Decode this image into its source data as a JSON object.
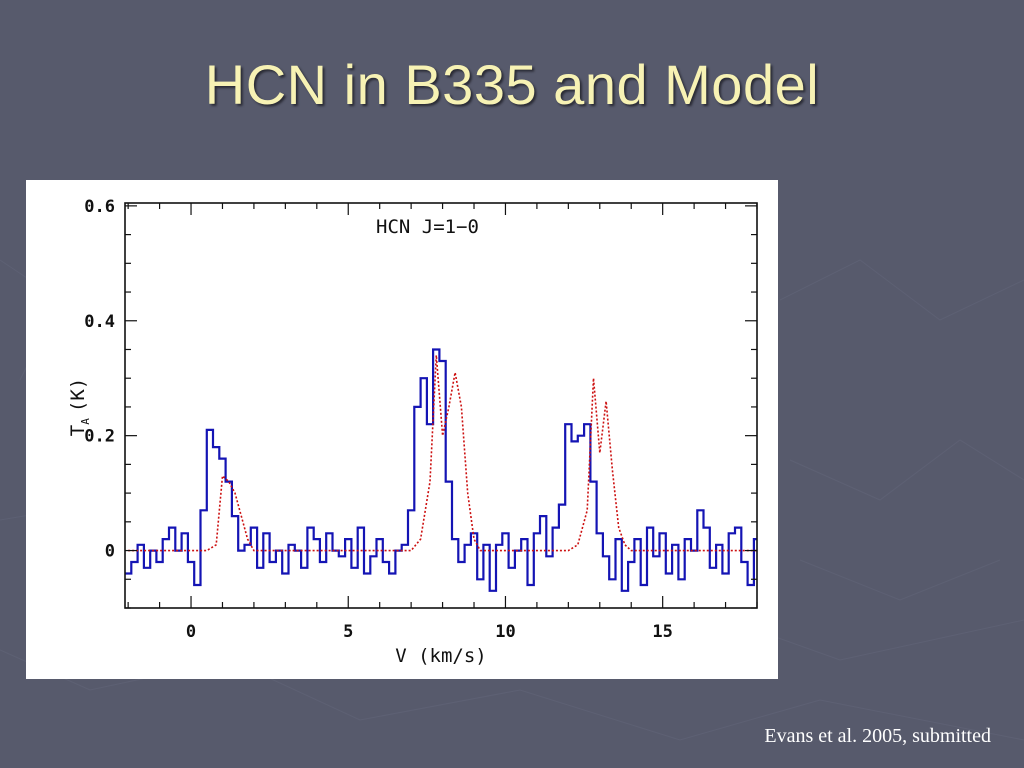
{
  "slide": {
    "title": "HCN in B335 and Model",
    "citation": "Evans et al. 2005, submitted"
  },
  "colors": {
    "background": "#575a6c",
    "title": "#f7f2b4",
    "observed": "#1414b4",
    "model": "#cc1010"
  },
  "chart_data": {
    "type": "line",
    "annotation": "HCN J=1−0",
    "xlabel": "V (km/s)",
    "ylabel_main": "T",
    "ylabel_sub": "A",
    "ylabel_suffix": "(K)",
    "xlim": [
      -2.1,
      18.0
    ],
    "ylim": [
      -0.1,
      0.605
    ],
    "x_ticks": [
      {
        "value": 0,
        "label": "0"
      },
      {
        "value": 5,
        "label": "5"
      },
      {
        "value": 10,
        "label": "10"
      },
      {
        "value": 15,
        "label": "15"
      }
    ],
    "y_ticks": [
      {
        "value": 0,
        "label": "0"
      },
      {
        "value": 0.2,
        "label": "0.2"
      },
      {
        "value": 0.4,
        "label": "0.4"
      },
      {
        "value": 0.6,
        "label": "0.6"
      }
    ],
    "grid": false,
    "series": [
      {
        "style": "solid-step",
        "x": [
          -2.0,
          -1.8,
          -1.6,
          -1.4,
          -1.2,
          -1.0,
          -0.8,
          -0.6,
          -0.4,
          -0.2,
          0.0,
          0.2,
          0.4,
          0.6,
          0.8,
          1.0,
          1.2,
          1.4,
          1.6,
          1.8,
          2.0,
          2.2,
          2.4,
          2.6,
          2.8,
          3.0,
          3.2,
          3.4,
          3.6,
          3.8,
          4.0,
          4.2,
          4.4,
          4.6,
          4.8,
          5.0,
          5.2,
          5.4,
          5.6,
          5.8,
          6.0,
          6.2,
          6.4,
          6.6,
          6.8,
          7.0,
          7.2,
          7.4,
          7.6,
          7.8,
          8.0,
          8.2,
          8.4,
          8.6,
          8.8,
          9.0,
          9.2,
          9.4,
          9.6,
          9.8,
          10.0,
          10.2,
          10.4,
          10.6,
          10.8,
          11.0,
          11.2,
          11.4,
          11.6,
          11.8,
          12.0,
          12.2,
          12.4,
          12.6,
          12.8,
          13.0,
          13.2,
          13.4,
          13.6,
          13.8,
          14.0,
          14.2,
          14.4,
          14.6,
          14.8,
          15.0,
          15.2,
          15.4,
          15.6,
          15.8,
          16.0,
          16.2,
          16.4,
          16.6,
          16.8,
          17.0,
          17.2,
          17.4,
          17.6,
          17.8,
          18.0
        ],
        "y": [
          -0.04,
          -0.02,
          0.01,
          -0.03,
          0.0,
          -0.02,
          0.02,
          0.04,
          0.0,
          0.03,
          -0.02,
          -0.06,
          0.07,
          0.21,
          0.18,
          0.16,
          0.12,
          0.06,
          0.0,
          0.01,
          0.04,
          -0.03,
          0.03,
          -0.02,
          0.0,
          -0.04,
          0.01,
          0.0,
          -0.03,
          0.04,
          0.02,
          -0.02,
          0.03,
          0.0,
          -0.01,
          0.02,
          -0.03,
          0.04,
          -0.04,
          -0.01,
          0.02,
          -0.02,
          -0.04,
          0.0,
          0.01,
          0.07,
          0.25,
          0.3,
          0.22,
          0.35,
          0.33,
          0.12,
          0.02,
          -0.02,
          0.01,
          0.03,
          -0.05,
          0.01,
          -0.07,
          0.01,
          0.03,
          -0.03,
          0.0,
          0.02,
          -0.06,
          0.03,
          0.06,
          -0.01,
          0.04,
          0.08,
          0.22,
          0.19,
          0.2,
          0.22,
          0.12,
          0.03,
          -0.01,
          -0.05,
          0.02,
          -0.07,
          -0.02,
          0.02,
          -0.06,
          0.04,
          -0.01,
          0.03,
          -0.04,
          0.01,
          -0.05,
          0.02,
          0.0,
          0.07,
          0.04,
          -0.03,
          0.01,
          -0.04,
          0.03,
          0.04,
          -0.02,
          -0.06,
          0.02
        ]
      },
      {
        "style": "dotted",
        "x": [
          -2.0,
          -1.5,
          -1.0,
          -0.5,
          0.0,
          0.5,
          0.8,
          1.0,
          1.2,
          1.4,
          1.6,
          1.8,
          2.0,
          2.2,
          2.5,
          3.0,
          3.5,
          4.0,
          4.5,
          5.0,
          5.5,
          6.0,
          6.5,
          7.0,
          7.3,
          7.6,
          7.8,
          8.0,
          8.2,
          8.4,
          8.6,
          8.8,
          9.0,
          9.2,
          9.5,
          10.0,
          10.5,
          11.0,
          11.5,
          12.0,
          12.3,
          12.6,
          12.8,
          13.0,
          13.2,
          13.4,
          13.6,
          13.8,
          14.0,
          14.3,
          14.6,
          15.0,
          15.5,
          16.0,
          16.5,
          17.0,
          17.5,
          18.0
        ],
        "y": [
          0.0,
          0.0,
          0.0,
          0.0,
          0.0,
          0.0,
          0.01,
          0.13,
          0.12,
          0.1,
          0.06,
          0.02,
          0.0,
          0.0,
          0.0,
          0.0,
          0.0,
          0.0,
          0.0,
          0.0,
          0.0,
          0.0,
          0.0,
          0.0,
          0.02,
          0.12,
          0.34,
          0.2,
          0.25,
          0.31,
          0.25,
          0.1,
          0.02,
          0.0,
          0.0,
          0.0,
          0.0,
          0.0,
          0.0,
          0.0,
          0.01,
          0.07,
          0.3,
          0.17,
          0.26,
          0.14,
          0.04,
          0.01,
          0.0,
          0.0,
          0.0,
          0.0,
          0.0,
          0.0,
          0.0,
          0.0,
          0.0,
          0.0
        ]
      }
    ]
  }
}
